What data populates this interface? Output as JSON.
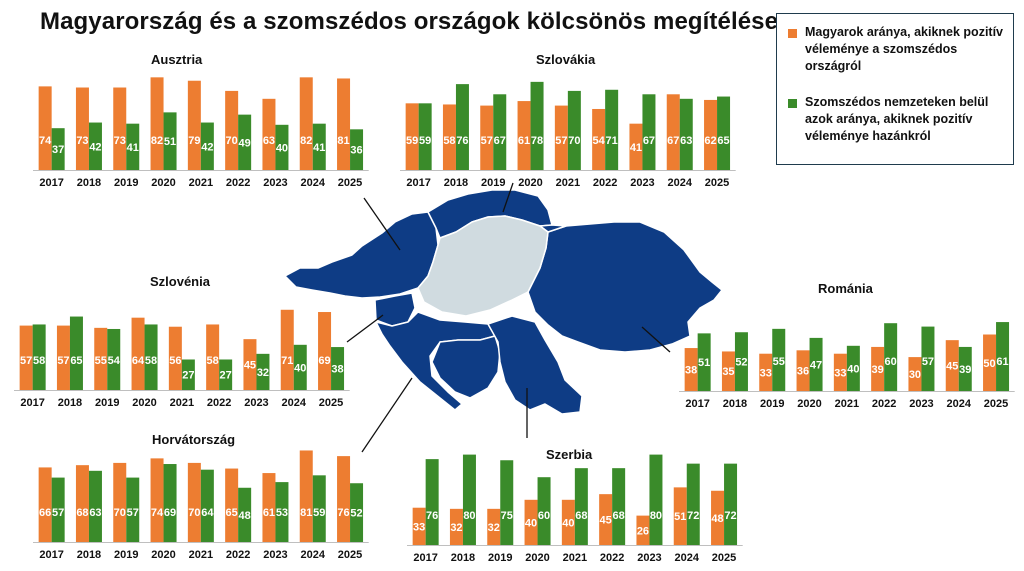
{
  "title": "Magyarország és a szomszédos országok kölcsönös megítélése",
  "legend": [
    {
      "label": "Magyarok aránya, akiknek pozitív véleménye a szomszédos országról",
      "color": "#ED7D31"
    },
    {
      "label": "Szomszédos nemzeteken belül azok aránya, akiknek pozitív véleménye hazánkról",
      "color": "#3A8B2A"
    }
  ],
  "colors": {
    "orange": "#ED7D31",
    "green": "#3A8B2A",
    "map_blue": "#0E3C85",
    "map_hungary": "#D0DBE0"
  },
  "chart_data": [
    {
      "type": "bar",
      "title": "Ausztria",
      "categories": [
        "2017",
        "2018",
        "2019",
        "2020",
        "2021",
        "2022",
        "2023",
        "2024",
        "2025"
      ],
      "series": [
        {
          "name": "Magyarok aránya, akiknek pozitív véleménye a szomszédos országról",
          "values": [
            74,
            73,
            73,
            82,
            79,
            70,
            63,
            82,
            81
          ]
        },
        {
          "name": "Szomszédos nemzeteken belül azok aránya, akiknek pozitív véleménye hazánkról",
          "values": [
            37,
            42,
            41,
            51,
            42,
            49,
            40,
            41,
            36
          ]
        }
      ]
    },
    {
      "type": "bar",
      "title": "Szlovákia",
      "categories": [
        "2017",
        "2018",
        "2019",
        "2020",
        "2021",
        "2022",
        "2023",
        "2024",
        "2025"
      ],
      "series": [
        {
          "name": "Magyarok aránya, akiknek pozitív véleménye a szomszédos országról",
          "values": [
            59,
            58,
            57,
            61,
            57,
            54,
            41,
            67,
            62
          ]
        },
        {
          "name": "Szomszédos nemzeteken belül azok aránya, akiknek pozitív véleménye hazánkról",
          "values": [
            59,
            76,
            67,
            78,
            70,
            71,
            67,
            63,
            65
          ]
        }
      ]
    },
    {
      "type": "bar",
      "title": "Szlovénia",
      "categories": [
        "2017",
        "2018",
        "2019",
        "2020",
        "2021",
        "2022",
        "2023",
        "2024",
        "2025"
      ],
      "series": [
        {
          "name": "Magyarok aránya, akiknek pozitív véleménye a szomszédos országról",
          "values": [
            57,
            57,
            55,
            64,
            56,
            58,
            45,
            71,
            69
          ]
        },
        {
          "name": "Szomszédos nemzeteken belül azok aránya, akiknek pozitív véleménye hazánkról",
          "values": [
            58,
            65,
            54,
            58,
            27,
            27,
            32,
            40,
            38
          ]
        }
      ]
    },
    {
      "type": "bar",
      "title": "Románia",
      "categories": [
        "2017",
        "2018",
        "2019",
        "2020",
        "2021",
        "2022",
        "2023",
        "2024",
        "2025"
      ],
      "series": [
        {
          "name": "Magyarok aránya, akiknek pozitív véleménye a szomszédos országról",
          "values": [
            38,
            35,
            33,
            36,
            33,
            39,
            30,
            45,
            50
          ]
        },
        {
          "name": "Szomszédos nemzeteken belül azok aránya, akiknek pozitív véleménye hazánkról",
          "values": [
            51,
            52,
            55,
            47,
            40,
            60,
            57,
            39,
            61
          ]
        }
      ]
    },
    {
      "type": "bar",
      "title": "Horvátország",
      "categories": [
        "2017",
        "2018",
        "2019",
        "2020",
        "2021",
        "2022",
        "2023",
        "2024",
        "2025"
      ],
      "series": [
        {
          "name": "Magyarok aránya, akiknek pozitív véleménye a szomszédos országról",
          "values": [
            66,
            68,
            70,
            74,
            70,
            65,
            61,
            81,
            76
          ]
        },
        {
          "name": "Szomszédos nemzeteken belül azok aránya, akiknek pozitív véleménye hazánkról",
          "values": [
            57,
            63,
            57,
            69,
            64,
            48,
            53,
            59,
            52
          ]
        }
      ]
    },
    {
      "type": "bar",
      "title": "Szerbia",
      "categories": [
        "2017",
        "2018",
        "2019",
        "2020",
        "2021",
        "2022",
        "2023",
        "2024",
        "2025"
      ],
      "series": [
        {
          "name": "Magyarok aránya, akiknek pozitív véleménye a szomszédos országról",
          "values": [
            33,
            32,
            32,
            40,
            40,
            45,
            26,
            51,
            48
          ]
        },
        {
          "name": "Szomszédos nemzeteken belül azok aránya, akiknek pozitív véleménye hazánkról",
          "values": [
            76,
            80,
            75,
            60,
            68,
            68,
            80,
            72,
            72
          ]
        }
      ]
    }
  ]
}
